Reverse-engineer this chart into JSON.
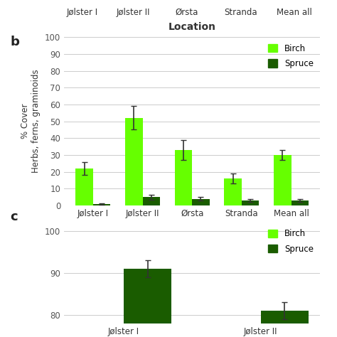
{
  "xlabel": "Location",
  "ylabel": "% Cover\nHerbs, ferns, graminoids",
  "panel_label_b": "b",
  "panel_label_c": "c",
  "categories": [
    "Jølster I",
    "Jølster II",
    "Ørsta",
    "Stranda",
    "Mean all"
  ],
  "top_categories": [
    "Jølster I",
    "Jølster II",
    "Ørsta",
    "Stranda",
    "Mean all"
  ],
  "top_xlabel": "Location",
  "birch_values": [
    22,
    52,
    33,
    16,
    30
  ],
  "birch_errors": [
    4,
    7,
    6,
    3,
    3
  ],
  "spruce_values": [
    1,
    5,
    4,
    3,
    3
  ],
  "spruce_errors": [
    0.5,
    1.5,
    1,
    0.8,
    0.8
  ],
  "birch_color": "#66ff00",
  "spruce_color": "#1a5c00",
  "ylim_b": [
    0,
    100
  ],
  "yticks_b": [
    0,
    10,
    20,
    30,
    40,
    50,
    60,
    70,
    80,
    90,
    100
  ],
  "bar_width": 0.35,
  "legend_labels": [
    "Birch",
    "Spruce"
  ],
  "c_categories": [
    "Jølster I",
    "Jølster II"
  ],
  "c_spruce_values": [
    91,
    81
  ],
  "c_spruce_errors": [
    2,
    2
  ],
  "c_ylim": [
    78,
    102
  ],
  "c_yticks": [
    80,
    90,
    100
  ],
  "background_color": "#ffffff",
  "grid_color": "#cccccc",
  "error_color": "#333333",
  "tick_color": "#555555",
  "label_color": "#333333"
}
